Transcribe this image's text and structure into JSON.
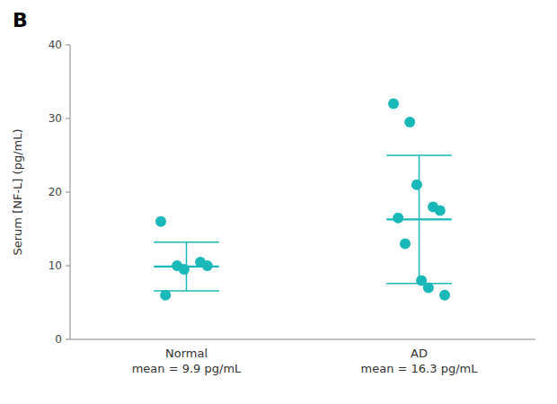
{
  "chart_data": {
    "type": "strip",
    "title": "B",
    "ylabel": "Serum [NF-L] (pg/mL)",
    "categories": [
      "Normal\nmean = 9.9 pg/mL",
      "AD\nmean = 16.3 pg/mL"
    ],
    "values": [
      [
        16.0,
        10.0,
        9.5,
        10.5,
        10.0,
        6.0
      ],
      [
        32.0,
        29.5,
        21.0,
        18.0,
        17.5,
        16.5,
        13.0,
        8.0,
        7.0,
        6.0
      ]
    ],
    "means": [
      9.9,
      16.3
    ],
    "errors": [
      3.3,
      8.7
    ],
    "color": "#1ab8b8",
    "ylim": [
      0,
      40
    ],
    "yticks": [
      0,
      10,
      20,
      30,
      40
    ],
    "grid": false
  }
}
